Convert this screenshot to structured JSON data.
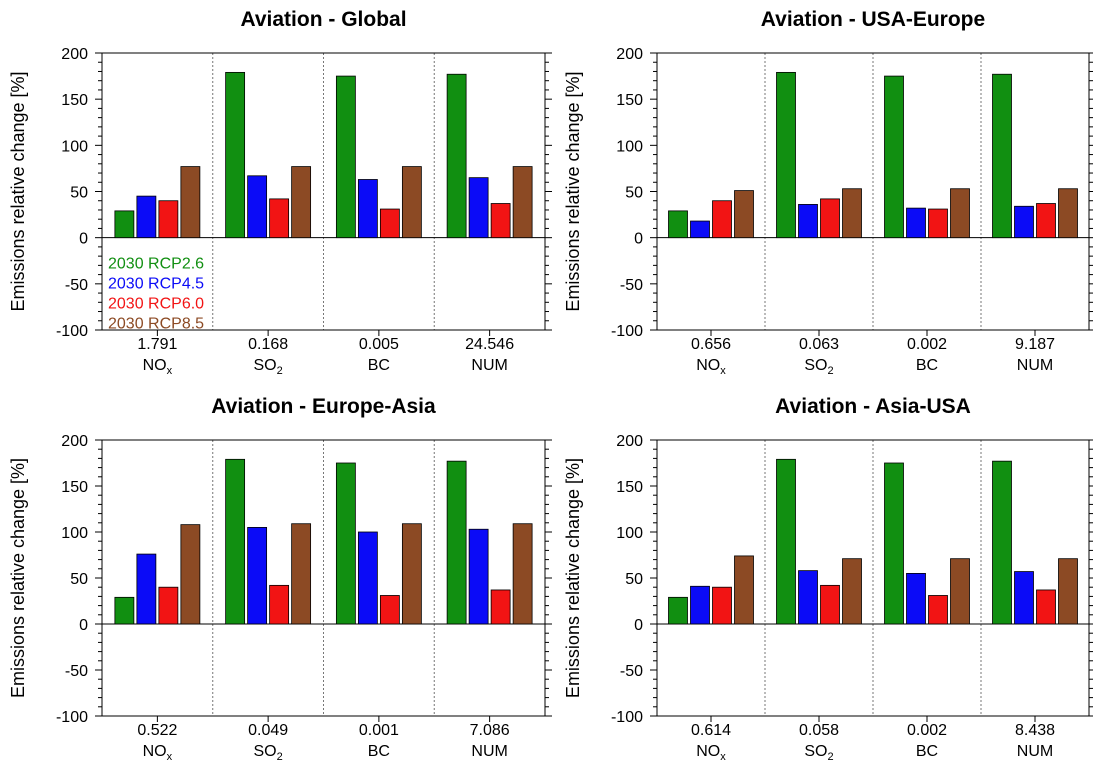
{
  "colors": {
    "2030 RCP2.6": "#118f11",
    "2030 RCP4.5": "#0b0bf7",
    "2030 RCP6.0": "#f21414",
    "2030 RCP8.5": "#8c4a24",
    "axis": "#000000",
    "separator": "#777777"
  },
  "chart_data": [
    {
      "type": "bar",
      "title": "Aviation - Global",
      "ylabel": "Emissions relative change [%]",
      "ylim": [
        -100,
        200
      ],
      "yticks": [
        "200",
        "150",
        "100",
        "50",
        "0",
        "-50",
        "-100"
      ],
      "categories": [
        "NOx",
        "SO2",
        "BC",
        "NUM"
      ],
      "category_values": [
        "1.791",
        "0.168",
        "0.005",
        "24.546"
      ],
      "legend": [
        "2030 RCP2.6",
        "2030 RCP4.5",
        "2030 RCP6.0",
        "2030 RCP8.5"
      ],
      "legend_position": "bottom-left",
      "series": [
        {
          "name": "2030 RCP2.6",
          "values": [
            29,
            179,
            175,
            177
          ]
        },
        {
          "name": "2030 RCP4.5",
          "values": [
            45,
            67,
            63,
            65
          ]
        },
        {
          "name": "2030 RCP6.0",
          "values": [
            40,
            42,
            31,
            37
          ]
        },
        {
          "name": "2030 RCP8.5",
          "values": [
            77,
            77,
            77,
            77
          ]
        }
      ]
    },
    {
      "type": "bar",
      "title": "Aviation - USA-Europe",
      "ylabel": "Emissions relative change [%]",
      "ylim": [
        -100,
        200
      ],
      "yticks": [
        "200",
        "150",
        "100",
        "50",
        "0",
        "-50",
        "-100"
      ],
      "categories": [
        "NOx",
        "SO2",
        "BC",
        "NUM"
      ],
      "category_values": [
        "0.656",
        "0.063",
        "0.002",
        "9.187"
      ],
      "series": [
        {
          "name": "2030 RCP2.6",
          "values": [
            29,
            179,
            175,
            177
          ]
        },
        {
          "name": "2030 RCP4.5",
          "values": [
            18,
            36,
            32,
            34
          ]
        },
        {
          "name": "2030 RCP6.0",
          "values": [
            40,
            42,
            31,
            37
          ]
        },
        {
          "name": "2030 RCP8.5",
          "values": [
            51,
            53,
            53,
            53
          ]
        }
      ]
    },
    {
      "type": "bar",
      "title": "Aviation - Europe-Asia",
      "ylabel": "Emissions relative change [%]",
      "ylim": [
        -100,
        200
      ],
      "yticks": [
        "200",
        "150",
        "100",
        "50",
        "0",
        "-50",
        "-100"
      ],
      "categories": [
        "NOx",
        "SO2",
        "BC",
        "NUM"
      ],
      "category_values": [
        "0.522",
        "0.049",
        "0.001",
        "7.086"
      ],
      "series": [
        {
          "name": "2030 RCP2.6",
          "values": [
            29,
            179,
            175,
            177
          ]
        },
        {
          "name": "2030 RCP4.5",
          "values": [
            76,
            105,
            100,
            103
          ]
        },
        {
          "name": "2030 RCP6.0",
          "values": [
            40,
            42,
            31,
            37
          ]
        },
        {
          "name": "2030 RCP8.5",
          "values": [
            108,
            109,
            109,
            109
          ]
        }
      ]
    },
    {
      "type": "bar",
      "title": "Aviation - Asia-USA",
      "ylabel": "Emissions relative change [%]",
      "ylim": [
        -100,
        200
      ],
      "yticks": [
        "200",
        "150",
        "100",
        "50",
        "0",
        "-50",
        "-100"
      ],
      "categories": [
        "NOx",
        "SO2",
        "BC",
        "NUM"
      ],
      "category_values": [
        "0.614",
        "0.058",
        "0.002",
        "8.438"
      ],
      "series": [
        {
          "name": "2030 RCP2.6",
          "values": [
            29,
            179,
            175,
            177
          ]
        },
        {
          "name": "2030 RCP4.5",
          "values": [
            41,
            58,
            55,
            57
          ]
        },
        {
          "name": "2030 RCP6.0",
          "values": [
            40,
            42,
            31,
            37
          ]
        },
        {
          "name": "2030 RCP8.5",
          "values": [
            74,
            71,
            71,
            71
          ]
        }
      ]
    }
  ]
}
